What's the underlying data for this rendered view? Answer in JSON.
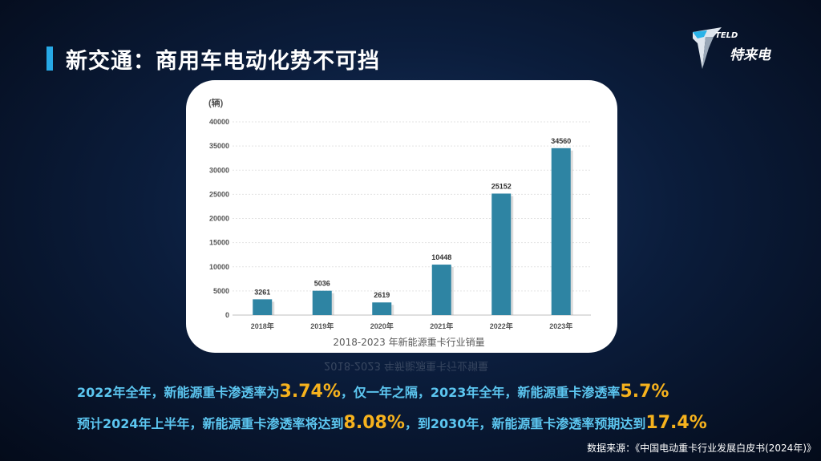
{
  "header": {
    "title": "新交通：商用车电动化势不可挡"
  },
  "logo": {
    "brand": "TELD",
    "name": "特来电"
  },
  "chart_data": {
    "type": "bar",
    "title": "2018-2023 年新能源重卡行业销量",
    "ylabel": "(辆)",
    "categories": [
      "2018年",
      "2019年",
      "2020年",
      "2021年",
      "2022年",
      "2023年"
    ],
    "values": [
      3261,
      5036,
      2619,
      10448,
      25152,
      34560
    ],
    "yticks": [
      0,
      5000,
      10000,
      15000,
      20000,
      25000,
      30000,
      35000,
      40000
    ],
    "ylim": [
      0,
      40000
    ],
    "grid": true,
    "bar_color": "#2e84a3"
  },
  "summary": {
    "line1_a": "2022年全年，新能源重卡渗透率为",
    "line1_v1": "3.74%",
    "line1_b": "，仅一年之隔，2023年全年，新能源重卡渗透率",
    "line1_v2": "5.7%",
    "line2_a": "预计2024年上半年，新能源重卡渗透率将达到",
    "line2_v1": "8.08%",
    "line2_b": "，到2030年，新能源重卡渗透率预期达到",
    "line2_v2": "17.4%"
  },
  "source": "数据来源：《中国电动重卡行业发展白皮书(2024年)》",
  "colors": {
    "accent": "#27a9e6",
    "highlight": "#f6b21d",
    "text_blue": "#5cc6f0"
  }
}
